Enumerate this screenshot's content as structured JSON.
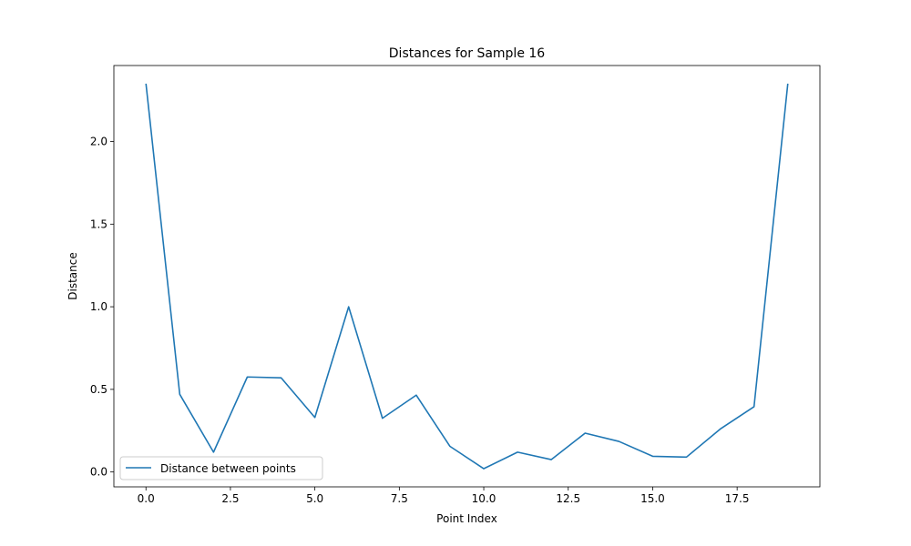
{
  "chart_data": {
    "type": "line",
    "title": "Distances for Sample 16",
    "xlabel": "Point Index",
    "ylabel": "Distance",
    "xlim": [
      -0.95,
      19.95
    ],
    "ylim": [
      -0.09,
      2.46
    ],
    "xticks": [
      0,
      2.5,
      5,
      7.5,
      10,
      12.5,
      15,
      17.5
    ],
    "xtick_labels": [
      "0.0",
      "2.5",
      "5.0",
      "7.5",
      "10.0",
      "12.5",
      "15.0",
      "17.5"
    ],
    "yticks": [
      0,
      0.5,
      1,
      1.5,
      2
    ],
    "ytick_labels": [
      "0.0",
      "0.5",
      "1.0",
      "1.5",
      "2.0"
    ],
    "grid": false,
    "legend_position": "lower-left",
    "series": [
      {
        "name": "Distance between points",
        "color": "#1f77b4",
        "x": [
          0,
          1,
          2,
          3,
          4,
          5,
          6,
          7,
          8,
          9,
          10,
          11,
          12,
          13,
          14,
          15,
          16,
          17,
          18,
          19
        ],
        "y": [
          2.35,
          0.47,
          0.12,
          0.575,
          0.57,
          0.33,
          1.0,
          0.325,
          0.465,
          0.155,
          0.02,
          0.12,
          0.075,
          0.235,
          0.185,
          0.095,
          0.09,
          0.26,
          0.395,
          2.35
        ]
      }
    ]
  }
}
